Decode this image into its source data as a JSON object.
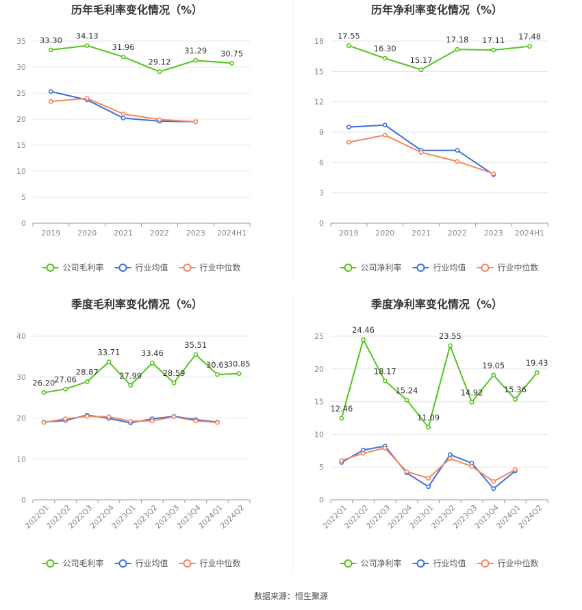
{
  "source": "数据来源：恒生聚源",
  "colors": {
    "company": "#52C41A",
    "avg": "#3D6FDB",
    "median": "#F28560"
  },
  "chart_data": [
    {
      "type": "line",
      "title": "历年毛利率变化情况（%）",
      "categories": [
        "2019",
        "2020",
        "2021",
        "2022",
        "2023",
        "2024H1"
      ],
      "ylim": [
        0,
        35
      ],
      "yticks": [
        0,
        5,
        10,
        15,
        20,
        25,
        30,
        35
      ],
      "series": [
        {
          "name": "公司毛利率",
          "values": [
            33.3,
            34.13,
            31.96,
            29.12,
            31.29,
            30.75
          ],
          "labels": true
        },
        {
          "name": "行业均值",
          "values": [
            25.3,
            23.7,
            20.2,
            19.6,
            19.5,
            null
          ]
        },
        {
          "name": "行业中位数",
          "values": [
            23.4,
            24.0,
            21.0,
            19.9,
            19.5,
            null
          ]
        }
      ],
      "grid": true,
      "legend": "bottom"
    },
    {
      "type": "line",
      "title": "历年净利率变化情况（%）",
      "categories": [
        "2019",
        "2020",
        "2021",
        "2022",
        "2023",
        "2024H1"
      ],
      "ylim": [
        0,
        18
      ],
      "yticks": [
        0,
        3,
        6,
        9,
        12,
        15,
        18
      ],
      "series": [
        {
          "name": "公司净利率",
          "values": [
            17.55,
            16.3,
            15.17,
            17.18,
            17.11,
            17.48
          ],
          "labels": true
        },
        {
          "name": "行业均值",
          "values": [
            9.5,
            9.7,
            7.2,
            7.2,
            4.8,
            null
          ]
        },
        {
          "name": "行业中位数",
          "values": [
            8.0,
            8.7,
            7.0,
            6.1,
            4.9,
            null
          ]
        }
      ],
      "grid": true,
      "legend": "bottom"
    },
    {
      "type": "line",
      "title": "季度毛利率变化情况（%）",
      "categories": [
        "2022Q1",
        "2022Q2",
        "2022Q3",
        "2022Q4",
        "2023Q1",
        "2023Q2",
        "2023Q3",
        "2023Q4",
        "2024Q1",
        "2024Q2"
      ],
      "ylim": [
        0,
        40
      ],
      "yticks": [
        0,
        10,
        20,
        30,
        40
      ],
      "series": [
        {
          "name": "公司毛利率",
          "values": [
            26.2,
            27.06,
            28.87,
            33.71,
            27.99,
            33.46,
            28.59,
            35.51,
            30.63,
            30.85
          ],
          "labels": true
        },
        {
          "name": "行业均值",
          "values": [
            19.0,
            19.4,
            20.7,
            19.9,
            18.8,
            19.8,
            20.4,
            19.6,
            19.0,
            null
          ]
        },
        {
          "name": "行业中位数",
          "values": [
            18.9,
            19.8,
            20.4,
            20.3,
            19.2,
            19.3,
            20.3,
            19.3,
            18.9,
            null
          ]
        }
      ],
      "grid": true,
      "legend": "bottom"
    },
    {
      "type": "line",
      "title": "季度净利率变化情况（%）",
      "categories": [
        "2022Q1",
        "2022Q2",
        "2022Q3",
        "2022Q4",
        "2023Q1",
        "2023Q2",
        "2023Q3",
        "2023Q4",
        "2024Q1",
        "2024Q2"
      ],
      "ylim": [
        0,
        25
      ],
      "yticks": [
        0,
        5,
        10,
        15,
        20,
        25
      ],
      "series": [
        {
          "name": "公司净利率",
          "values": [
            12.46,
            24.46,
            18.17,
            15.24,
            11.09,
            23.55,
            14.92,
            19.05,
            15.36,
            19.43
          ],
          "labels": true
        },
        {
          "name": "行业均值",
          "values": [
            5.7,
            7.6,
            8.2,
            4.1,
            2.0,
            6.9,
            5.6,
            1.7,
            4.4,
            null
          ]
        },
        {
          "name": "行业中位数",
          "values": [
            6.0,
            7.1,
            7.9,
            4.3,
            3.3,
            6.3,
            5.1,
            2.8,
            4.6,
            null
          ]
        }
      ],
      "grid": true,
      "legend": "bottom"
    }
  ]
}
